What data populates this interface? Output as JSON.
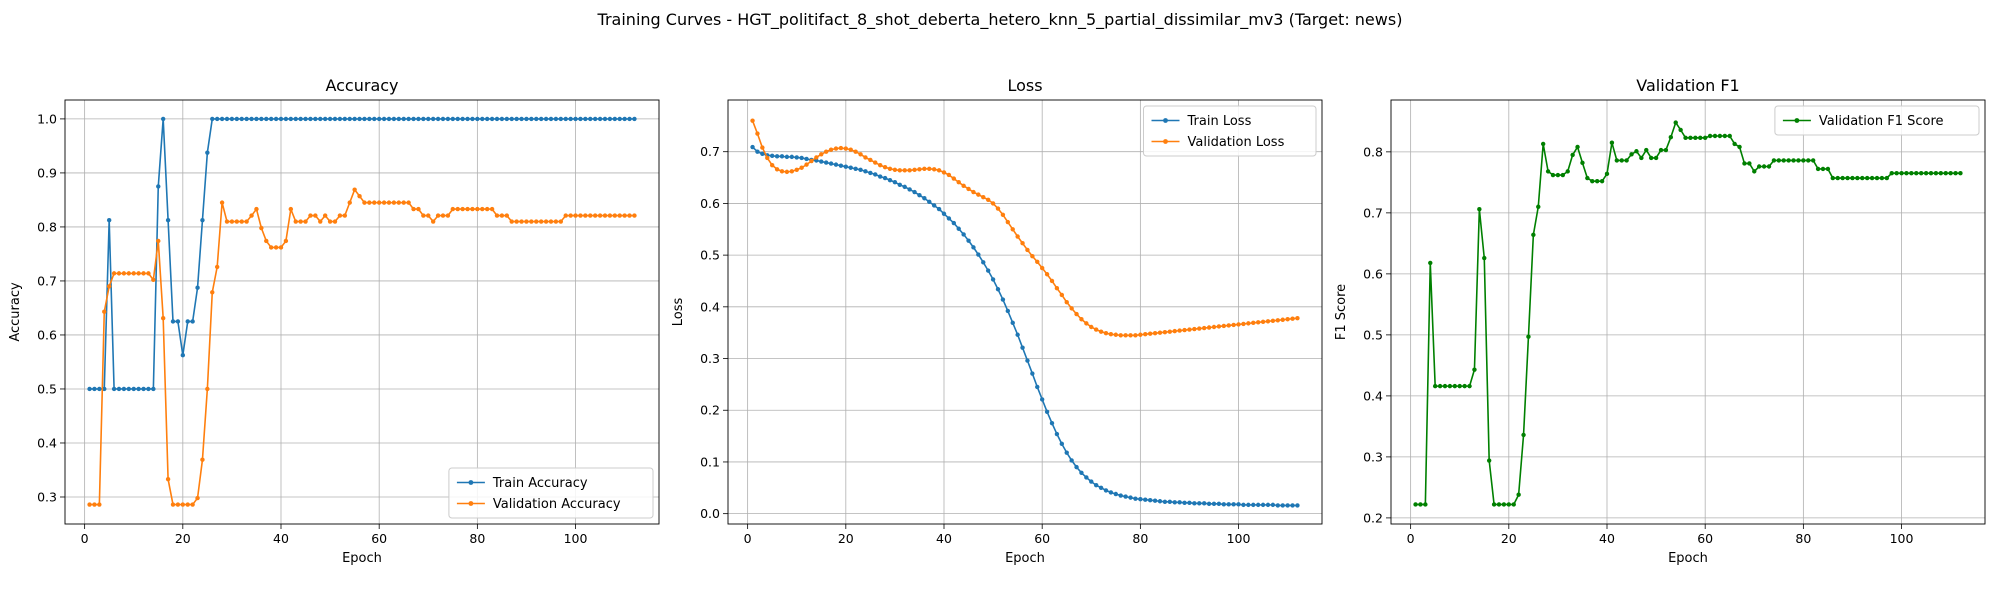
{
  "suptitle": "Training Curves - HGT_politifact_8_shot_deberta_hetero_knn_5_partial_dissimilar_mv3 (Target: news)",
  "chart_data": [
    {
      "type": "line",
      "title": "Accuracy",
      "xlabel": "Epoch",
      "ylabel": "Accuracy",
      "xlim": [
        -4,
        117
      ],
      "ylim": [
        0.25,
        1.035
      ],
      "xticks": [
        0,
        20,
        40,
        60,
        80,
        100
      ],
      "yticks": [
        0.3,
        0.4,
        0.5,
        0.6,
        0.7,
        0.8,
        0.9,
        1.0
      ],
      "grid": true,
      "legend": "bottom-right",
      "x_start": 1,
      "series": [
        {
          "name": "Train Accuracy",
          "color": "#1f77b4",
          "values": [
            0.5,
            0.5,
            0.5,
            0.5,
            0.8125,
            0.5,
            0.5,
            0.5,
            0.5,
            0.5,
            0.5,
            0.5,
            0.5,
            0.5,
            0.875,
            1.0,
            0.8125,
            0.625,
            0.625,
            0.5625,
            0.625,
            0.625,
            0.6875,
            0.8125,
            0.9375,
            1.0,
            1.0,
            1.0,
            1.0,
            1.0,
            1.0,
            1.0,
            1.0,
            1.0,
            1.0,
            1.0,
            1.0,
            1.0,
            1.0,
            1.0,
            1.0,
            1.0,
            1.0,
            1.0,
            1.0,
            1.0,
            1.0,
            1.0,
            1.0,
            1.0,
            1.0,
            1.0,
            1.0,
            1.0,
            1.0,
            1.0,
            1.0,
            1.0,
            1.0,
            1.0,
            1.0,
            1.0,
            1.0,
            1.0,
            1.0,
            1.0,
            1.0,
            1.0,
            1.0,
            1.0,
            1.0,
            1.0,
            1.0,
            1.0,
            1.0,
            1.0,
            1.0,
            1.0,
            1.0,
            1.0,
            1.0,
            1.0,
            1.0,
            1.0,
            1.0,
            1.0,
            1.0,
            1.0,
            1.0,
            1.0,
            1.0,
            1.0,
            1.0,
            1.0,
            1.0,
            1.0,
            1.0,
            1.0,
            1.0,
            1.0,
            1.0,
            1.0,
            1.0,
            1.0,
            1.0,
            1.0,
            1.0,
            1.0,
            1.0,
            1.0,
            1.0,
            1.0
          ]
        },
        {
          "name": "Validation Accuracy",
          "color": "#ff7f0e",
          "values": [
            0.286,
            0.286,
            0.286,
            0.643,
            0.69,
            0.714,
            0.714,
            0.714,
            0.714,
            0.714,
            0.714,
            0.714,
            0.714,
            0.702,
            0.774,
            0.631,
            0.333,
            0.286,
            0.286,
            0.286,
            0.286,
            0.286,
            0.298,
            0.369,
            0.5,
            0.679,
            0.726,
            0.845,
            0.81,
            0.81,
            0.81,
            0.81,
            0.81,
            0.821,
            0.833,
            0.798,
            0.774,
            0.762,
            0.762,
            0.762,
            0.774,
            0.833,
            0.81,
            0.81,
            0.81,
            0.821,
            0.821,
            0.81,
            0.821,
            0.81,
            0.81,
            0.821,
            0.821,
            0.845,
            0.869,
            0.857,
            0.845,
            0.845,
            0.845,
            0.845,
            0.845,
            0.845,
            0.845,
            0.845,
            0.845,
            0.845,
            0.833,
            0.833,
            0.821,
            0.821,
            0.81,
            0.821,
            0.821,
            0.821,
            0.833,
            0.833,
            0.833,
            0.833,
            0.833,
            0.833,
            0.833,
            0.833,
            0.833,
            0.821,
            0.821,
            0.821,
            0.81,
            0.81,
            0.81,
            0.81,
            0.81,
            0.81,
            0.81,
            0.81,
            0.81,
            0.81,
            0.81,
            0.821,
            0.821,
            0.821,
            0.821,
            0.821,
            0.821,
            0.821,
            0.821,
            0.821,
            0.821,
            0.821,
            0.821,
            0.821,
            0.821,
            0.821
          ]
        }
      ]
    },
    {
      "type": "line",
      "title": "Loss",
      "xlabel": "Epoch",
      "ylabel": "Loss",
      "xlim": [
        -4,
        117
      ],
      "ylim": [
        -0.02,
        0.8
      ],
      "xticks": [
        0,
        20,
        40,
        60,
        80,
        100
      ],
      "yticks": [
        0.0,
        0.1,
        0.2,
        0.3,
        0.4,
        0.5,
        0.6,
        0.7
      ],
      "grid": true,
      "legend": "top-right",
      "x_start": 1,
      "series": [
        {
          "name": "Train Loss",
          "color": "#1f77b4",
          "values": [
            0.709,
            0.7,
            0.696,
            0.693,
            0.692,
            0.691,
            0.691,
            0.69,
            0.69,
            0.689,
            0.688,
            0.686,
            0.684,
            0.683,
            0.681,
            0.679,
            0.677,
            0.675,
            0.673,
            0.671,
            0.669,
            0.667,
            0.665,
            0.662,
            0.659,
            0.656,
            0.652,
            0.649,
            0.645,
            0.641,
            0.636,
            0.632,
            0.627,
            0.622,
            0.616,
            0.61,
            0.603,
            0.596,
            0.589,
            0.58,
            0.571,
            0.562,
            0.551,
            0.54,
            0.528,
            0.515,
            0.501,
            0.486,
            0.47,
            0.453,
            0.434,
            0.414,
            0.392,
            0.369,
            0.346,
            0.321,
            0.296,
            0.271,
            0.245,
            0.221,
            0.197,
            0.175,
            0.154,
            0.135,
            0.118,
            0.103,
            0.09,
            0.079,
            0.07,
            0.062,
            0.055,
            0.05,
            0.045,
            0.041,
            0.038,
            0.035,
            0.033,
            0.031,
            0.029,
            0.028,
            0.027,
            0.026,
            0.025,
            0.024,
            0.023,
            0.023,
            0.022,
            0.022,
            0.021,
            0.021,
            0.02,
            0.02,
            0.02,
            0.019,
            0.019,
            0.019,
            0.018,
            0.018,
            0.018,
            0.018,
            0.017,
            0.017,
            0.017,
            0.017,
            0.017,
            0.017,
            0.017,
            0.016,
            0.016,
            0.016,
            0.016,
            0.016
          ]
        },
        {
          "name": "Validation Loss",
          "color": "#ff7f0e",
          "values": [
            0.76,
            0.735,
            0.708,
            0.688,
            0.674,
            0.666,
            0.662,
            0.661,
            0.662,
            0.665,
            0.669,
            0.675,
            0.682,
            0.689,
            0.695,
            0.7,
            0.704,
            0.706,
            0.707,
            0.706,
            0.704,
            0.7,
            0.695,
            0.689,
            0.684,
            0.679,
            0.674,
            0.67,
            0.667,
            0.665,
            0.664,
            0.664,
            0.664,
            0.665,
            0.666,
            0.667,
            0.667,
            0.666,
            0.664,
            0.66,
            0.655,
            0.648,
            0.641,
            0.634,
            0.628,
            0.622,
            0.617,
            0.612,
            0.607,
            0.6,
            0.59,
            0.578,
            0.564,
            0.55,
            0.536,
            0.523,
            0.51,
            0.498,
            0.487,
            0.475,
            0.463,
            0.45,
            0.436,
            0.423,
            0.409,
            0.397,
            0.386,
            0.376,
            0.368,
            0.361,
            0.356,
            0.352,
            0.349,
            0.347,
            0.346,
            0.345,
            0.345,
            0.345,
            0.345,
            0.346,
            0.347,
            0.348,
            0.349,
            0.35,
            0.351,
            0.352,
            0.353,
            0.354,
            0.355,
            0.356,
            0.357,
            0.358,
            0.359,
            0.36,
            0.361,
            0.362,
            0.363,
            0.364,
            0.365,
            0.366,
            0.367,
            0.368,
            0.369,
            0.37,
            0.371,
            0.372,
            0.373,
            0.374,
            0.375,
            0.376,
            0.377,
            0.378
          ]
        }
      ]
    },
    {
      "type": "line",
      "title": "Validation F1",
      "xlabel": "Epoch",
      "ylabel": "F1 Score",
      "xlim": [
        -4,
        117
      ],
      "ylim": [
        0.19,
        0.885
      ],
      "xticks": [
        0,
        20,
        40,
        60,
        80,
        100
      ],
      "yticks": [
        0.2,
        0.3,
        0.4,
        0.5,
        0.6,
        0.7,
        0.8
      ],
      "grid": true,
      "legend": "top-right",
      "x_start": 1,
      "series": [
        {
          "name": "Validation F1 Score",
          "color": "#008000",
          "values": [
            0.222,
            0.222,
            0.222,
            0.618,
            0.416,
            0.416,
            0.416,
            0.416,
            0.416,
            0.416,
            0.416,
            0.416,
            0.443,
            0.706,
            0.626,
            0.294,
            0.222,
            0.222,
            0.222,
            0.222,
            0.222,
            0.238,
            0.336,
            0.497,
            0.664,
            0.71,
            0.813,
            0.768,
            0.762,
            0.762,
            0.762,
            0.768,
            0.795,
            0.808,
            0.782,
            0.757,
            0.752,
            0.752,
            0.752,
            0.764,
            0.815,
            0.786,
            0.786,
            0.786,
            0.796,
            0.801,
            0.79,
            0.803,
            0.79,
            0.79,
            0.803,
            0.803,
            0.824,
            0.848,
            0.836,
            0.823,
            0.823,
            0.823,
            0.823,
            0.823,
            0.826,
            0.826,
            0.826,
            0.826,
            0.826,
            0.813,
            0.808,
            0.781,
            0.781,
            0.768,
            0.776,
            0.776,
            0.776,
            0.786,
            0.786,
            0.786,
            0.786,
            0.786,
            0.786,
            0.786,
            0.786,
            0.786,
            0.772,
            0.772,
            0.772,
            0.757,
            0.757,
            0.757,
            0.757,
            0.757,
            0.757,
            0.757,
            0.757,
            0.757,
            0.757,
            0.757,
            0.757,
            0.765,
            0.765,
            0.765,
            0.765,
            0.765,
            0.765,
            0.765,
            0.765,
            0.765,
            0.765,
            0.765,
            0.765,
            0.765,
            0.765,
            0.765
          ]
        }
      ]
    }
  ]
}
